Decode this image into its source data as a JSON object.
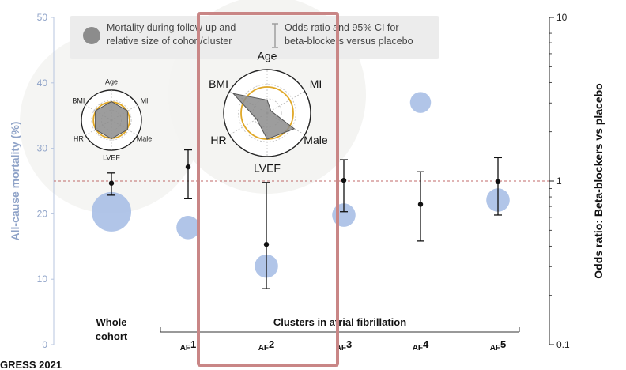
{
  "legend": {
    "mortality_label_line1": "Mortality during follow-up and",
    "mortality_label_line2": "relative size of cohort/cluster",
    "or_label_line1": "Odds ratio and 95% CI for",
    "or_label_line2": "beta-blockers versus placebo"
  },
  "group_label": "Clusters in atrial fibrillation",
  "footer_text": "GRESS 2021",
  "colors": {
    "bubble": "#a9bfe6",
    "left_axis": "#8fa3c8",
    "highlight_box": "#c98686",
    "reference_line": "#c06a6a",
    "radar_ring": "#e0a828",
    "radar_fill": "#8c8c8c"
  },
  "radar": {
    "axes": [
      "Age",
      "MI",
      "Male",
      "LVEF",
      "HR",
      "BMI"
    ],
    "whole_cohort_values": [
      0.62,
      0.62,
      0.62,
      0.62,
      0.62,
      0.62
    ],
    "af2_values": [
      0.3,
      0.1,
      0.72,
      0.6,
      0.28,
      0.9
    ]
  },
  "chart_data": {
    "type": "scatter",
    "categories": [
      "Whole cohort",
      "AF1",
      "AF2",
      "AF3",
      "AF4",
      "AF5"
    ],
    "category_labels": [
      {
        "main": "Whole",
        "sub": "cohort"
      },
      {
        "main": "AF",
        "sub": "1"
      },
      {
        "main": "AF",
        "sub": "2"
      },
      {
        "main": "AF",
        "sub": "3"
      },
      {
        "main": "AF",
        "sub": "4"
      },
      {
        "main": "AF",
        "sub": "5"
      }
    ],
    "highlighted_category": "AF2",
    "left_axis": {
      "label": "All-cause mortality (%)",
      "ylim": [
        0,
        50
      ],
      "ticks": [
        "0",
        "10",
        "20",
        "30",
        "40",
        "50"
      ]
    },
    "right_axis": {
      "label": "Odds ratio:  Beta-blockers vs placebo",
      "scale": "log",
      "ylim": [
        0.1,
        10
      ],
      "ticks": [
        "0.1",
        "1",
        "10"
      ]
    },
    "reference_line_or": 1,
    "series": [
      {
        "name": "Mortality during follow-up and relative size of cohort/cluster",
        "axis": "left",
        "mortality": [
          20.3,
          17.9,
          12.0,
          19.8,
          37.0,
          22.1
        ],
        "relative_size": [
          1.0,
          0.35,
          0.35,
          0.35,
          0.28,
          0.35
        ]
      },
      {
        "name": "Odds ratio and 95% CI for beta-blockers versus placebo",
        "axis": "right",
        "or": [
          0.97,
          1.22,
          0.41,
          1.01,
          0.72,
          0.99
        ],
        "ci_low": [
          0.82,
          0.78,
          0.22,
          0.65,
          0.43,
          0.62
        ],
        "ci_high": [
          1.12,
          1.55,
          0.98,
          1.35,
          1.14,
          1.39
        ]
      }
    ]
  }
}
